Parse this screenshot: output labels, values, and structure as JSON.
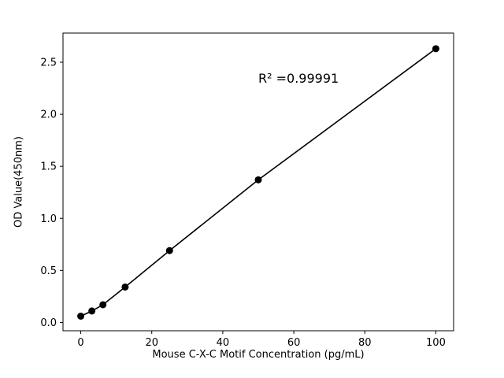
{
  "chart_data": {
    "type": "scatter",
    "x": [
      0,
      3.125,
      6.25,
      12.5,
      25,
      50,
      100
    ],
    "y": [
      0.06,
      0.11,
      0.17,
      0.34,
      0.69,
      1.37,
      2.63
    ],
    "line": true,
    "title": "",
    "xlabel": "Mouse C-X-C Motif Concentration (pg/mL)",
    "ylabel": "OD Value(450nm)",
    "annotation": "R² =0.99991",
    "xlim": [
      -5,
      105
    ],
    "ylim": [
      -0.08,
      2.78
    ],
    "xticks": [
      0,
      20,
      40,
      60,
      80,
      100
    ],
    "yticks": [
      0.0,
      0.5,
      1.0,
      1.5,
      2.0,
      2.5
    ],
    "marker_color": "#000000",
    "line_color": "#000000",
    "background_color": "#ffffff",
    "grid": false,
    "legend": null
  }
}
